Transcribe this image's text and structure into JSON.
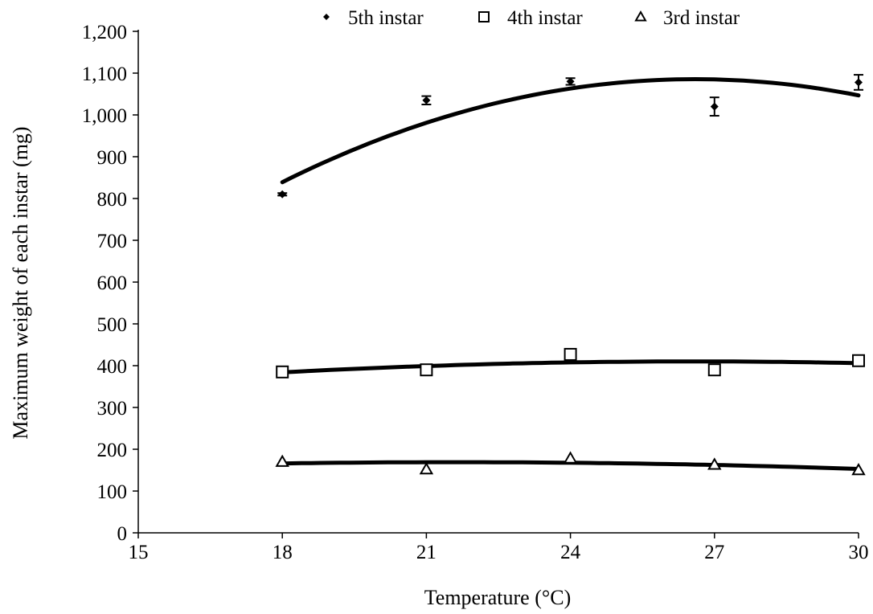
{
  "chart_data": {
    "type": "scatter",
    "xlabel": "Temperature (°C)",
    "ylabel": "Maximum weight of each instar (mg)",
    "xlim": [
      15,
      30
    ],
    "ylim": [
      0,
      1200
    ],
    "x_ticks": [
      15,
      18,
      21,
      24,
      27,
      30
    ],
    "x_tick_labels": [
      "15",
      "18",
      "21",
      "24",
      "27",
      "30"
    ],
    "y_ticks": [
      0,
      100,
      200,
      300,
      400,
      500,
      600,
      700,
      800,
      900,
      1000,
      1100,
      1200
    ],
    "y_tick_labels": [
      "0",
      "100",
      "200",
      "300",
      "400",
      "500",
      "600",
      "700",
      "800",
      "900",
      "1,000",
      "1,100",
      "1,200"
    ],
    "grid": false,
    "legend_position": "top",
    "trendline": "quadratic",
    "series": [
      {
        "name": "5th instar",
        "marker": "diamond",
        "x": [
          18,
          21,
          24,
          27,
          30
        ],
        "y": [
          810,
          1035,
          1080,
          1020,
          1078
        ],
        "error": [
          3,
          10,
          8,
          22,
          18
        ],
        "trend": [
          838,
          983,
          1064,
          1082,
          1048
        ]
      },
      {
        "name": "4th instar",
        "marker": "square",
        "x": [
          18,
          21,
          24,
          27,
          30
        ],
        "y": [
          385,
          390,
          427,
          390,
          412
        ],
        "error": [
          0,
          0,
          0,
          0,
          0
        ],
        "trend": [
          384,
          399,
          408,
          410,
          406
        ]
      },
      {
        "name": "3rd instar",
        "marker": "triangle",
        "x": [
          18,
          21,
          24,
          27,
          30
        ],
        "y": [
          170,
          152,
          178,
          163,
          150
        ],
        "error": [
          0,
          0,
          0,
          0,
          0
        ],
        "trend": [
          166,
          169,
          168,
          162,
          153
        ]
      }
    ]
  }
}
